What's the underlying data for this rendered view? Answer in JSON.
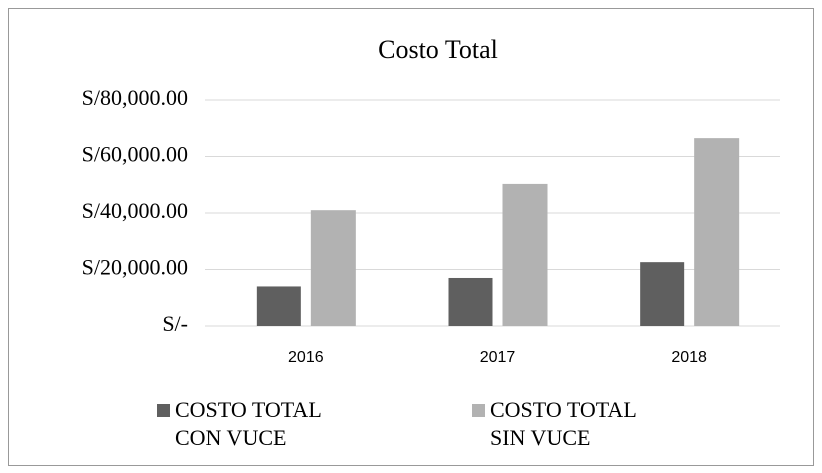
{
  "chart_data": {
    "type": "bar",
    "title": "Costo Total",
    "categories": [
      "2016",
      "2017",
      "2018"
    ],
    "series": [
      {
        "name": "COSTO TOTAL CON VUCE",
        "color": "#5f5f5f",
        "values": [
          14000,
          17000,
          22600
        ]
      },
      {
        "name": "COSTO TOTAL SIN VUCE",
        "color": "#b2b2b2",
        "values": [
          41000,
          50300,
          66500
        ]
      }
    ],
    "ylim": [
      0,
      80000
    ],
    "yticks": [
      {
        "value": 0,
        "label": "S/-"
      },
      {
        "value": 20000,
        "label": "S/20,000.00"
      },
      {
        "value": 40000,
        "label": "S/40,000.00"
      },
      {
        "value": 60000,
        "label": "S/60,000.00"
      },
      {
        "value": 80000,
        "label": "S/80,000.00"
      }
    ],
    "grid": true,
    "legend": "bottom"
  }
}
